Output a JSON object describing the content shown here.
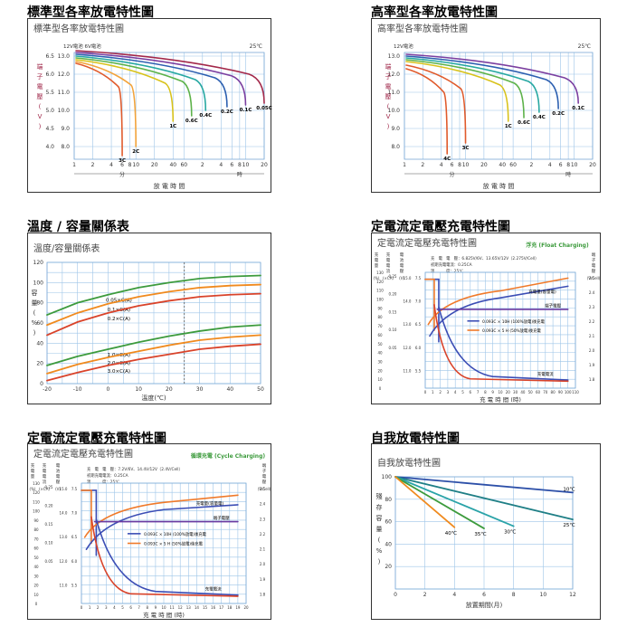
{
  "sections": [
    {
      "title": "標準型各率放電特性圖",
      "box_title": "標準型各率放電特性圖"
    },
    {
      "title": "高率型各率放電特性圖",
      "box_title": "高率型各率放電特性圖"
    },
    {
      "title": "溫度 / 容量關係表",
      "box_title": "溫度/容量關係表"
    },
    {
      "title": "定電流定電壓充電特性圖",
      "box_title": "定電流定電壓充電特性圖"
    },
    {
      "title": "定電流定電壓充電特性圖",
      "box_title": "定電流定電壓充電特性圖"
    },
    {
      "title": "自我放電特性圖",
      "box_title": "自我放電特性圖"
    }
  ],
  "chart_data": [
    {
      "type": "line",
      "header_left": "12V電池  6V電池",
      "header_right": "25℃",
      "ylabel": "端子電壓(V)",
      "y12_ticks": [
        "13.0",
        "12.0",
        "11.0",
        "10.0",
        "9.0",
        "8.0"
      ],
      "y6_ticks": [
        "6.5",
        "6.0",
        "5.5",
        "5.0",
        "4.5",
        "4.0"
      ],
      "x_ticks": [
        "1",
        "2",
        "4",
        "6",
        "8",
        "10",
        "20",
        "40",
        "60",
        "2",
        "4",
        "6",
        "8",
        "10",
        "20"
      ],
      "x_units": {
        "min": "分",
        "hour": "時"
      },
      "xlabel": "放 電 時 間",
      "series": [
        {
          "name": "3C",
          "end_min": 6,
          "v0": 12.6,
          "vend": 7.5
        },
        {
          "name": "2C",
          "end_min": 10,
          "v0": 12.7,
          "vend": 8.0
        },
        {
          "name": "1C",
          "end_min": 40,
          "v0": 12.8,
          "vend": 9.4
        },
        {
          "name": "0.6C",
          "end_min": 80,
          "v0": 12.9,
          "vend": 9.7
        },
        {
          "name": "0.4C",
          "end_min": 135,
          "v0": 13.0,
          "vend": 10.0
        },
        {
          "name": "0.2C",
          "end_min": 300,
          "v0": 13.1,
          "vend": 10.2
        },
        {
          "name": "0.1C",
          "end_min": 600,
          "v0": 13.2,
          "vend": 10.3
        },
        {
          "name": "0.05C",
          "end_min": 1200,
          "v0": 13.3,
          "vend": 10.4
        }
      ]
    },
    {
      "type": "line",
      "header_left": "12V電池",
      "header_right": "25℃",
      "ylabel": "端子電壓(V)",
      "y12_ticks": [
        "13.0",
        "12.0",
        "11.0",
        "10.0",
        "9.0",
        "8.0"
      ],
      "x_ticks": [
        "1",
        "2",
        "4",
        "6",
        "8",
        "10",
        "20",
        "40",
        "60",
        "2",
        "4",
        "6",
        "8",
        "10",
        "20"
      ],
      "x_units": {
        "min": "分",
        "hour": "時"
      },
      "xlabel": "放 電 時 間",
      "series": [
        {
          "name": "4C",
          "end_min": 5,
          "v0": 12.3,
          "vend": 7.6
        },
        {
          "name": "3C",
          "end_min": 10,
          "v0": 12.5,
          "vend": 8.2
        },
        {
          "name": "1C",
          "end_min": 50,
          "v0": 12.7,
          "vend": 9.4
        },
        {
          "name": "0.6C",
          "end_min": 90,
          "v0": 12.8,
          "vend": 9.6
        },
        {
          "name": "0.4C",
          "end_min": 160,
          "v0": 12.9,
          "vend": 9.9
        },
        {
          "name": "0.2C",
          "end_min": 330,
          "v0": 13.0,
          "vend": 10.1
        },
        {
          "name": "0.1C",
          "end_min": 700,
          "v0": 13.1,
          "vend": 10.4
        }
      ]
    },
    {
      "type": "line",
      "ylabel": "容量(%)",
      "xlabel": "溫度(℃)",
      "x": [
        -20,
        -10,
        0,
        10,
        20,
        30,
        40,
        50
      ],
      "x_ticks": [
        "-20",
        "-10",
        "0",
        "10",
        "20",
        "30",
        "40",
        "50"
      ],
      "y_ticks": [
        "0",
        "20",
        "40",
        "60",
        "80",
        "100",
        "120"
      ],
      "ylim": [
        0,
        120
      ],
      "marker_x": 25,
      "series": [
        {
          "name": "0.05×C(A)",
          "values": [
            68,
            80,
            88,
            95,
            100,
            104,
            106,
            107
          ]
        },
        {
          "name": "0.1×C(A)",
          "values": [
            58,
            70,
            79,
            86,
            91,
            95,
            97,
            98
          ]
        },
        {
          "name": "0.2×C(A)",
          "values": [
            48,
            61,
            70,
            77,
            82,
            86,
            88,
            89
          ]
        },
        {
          "name": "1.0×C(A)",
          "values": [
            18,
            27,
            34,
            41,
            47,
            52,
            56,
            58
          ]
        },
        {
          "name": "2.0×C(A)",
          "values": [
            10,
            19,
            26,
            32,
            38,
            43,
            46,
            48
          ]
        },
        {
          "name": "3.0×C(A)",
          "values": [
            3,
            11,
            18,
            24,
            29,
            34,
            37,
            39
          ]
        }
      ]
    },
    {
      "type": "line",
      "mode_label": "浮充 (Float Charging)",
      "col_headers": [
        "充電量",
        "充電電流",
        "電池電壓",
        "端子電壓"
      ],
      "col_units": [
        "(%)",
        "(×CA)",
        "(V)",
        "(V/Cell)"
      ],
      "info": [
        "充　電　電　壓：6.825V/6V、13.65V/12V（2.275V/Cell）",
        "初期充電電流：0.25CA",
        "溫　　　度：25℃"
      ],
      "legend": [
        "0.093C × 10H (100%放電)後充電",
        "0.093C × 5 H (50%放電)後充電"
      ],
      "labels": {
        "charge_qty": "充電量(容量電)",
        "term_v": "端子電壓",
        "current": "充電電流"
      },
      "xlabel": "充 電 時 間 (時)",
      "x_ticks": [
        "0",
        "1",
        "2",
        "3",
        "4",
        "5",
        "6",
        "7",
        "8",
        "9",
        "10",
        "20",
        "30",
        "40",
        "50",
        "60",
        "70",
        "80",
        "90",
        "100",
        "110"
      ],
      "charge_ticks": [
        "130",
        "120",
        "110",
        "100",
        "90",
        "80",
        "70",
        "60",
        "50",
        "40",
        "30",
        "20",
        "10",
        "0"
      ],
      "current_ticks": [
        "0.25",
        "0.20",
        "0.15",
        "0.10",
        "0.05"
      ],
      "batt_ticks": [
        "15.0",
        "7.5",
        "14.0",
        "7.0",
        "13.0",
        "6.5",
        "12.0",
        "6.0",
        "11.0",
        "5.5"
      ],
      "cell_ticks": [
        "2.5",
        "2.4",
        "2.3",
        "2.2",
        "2.1",
        "2.0",
        "1.9",
        "1.8"
      ]
    },
    {
      "type": "line",
      "mode_label": "循環充電 (Cycle Charging)",
      "col_headers": [
        "充電量",
        "充電電流",
        "電池電壓",
        "端子電壓"
      ],
      "col_units": [
        "(%)",
        "(×CA)",
        "(V)",
        "(V/Cell)"
      ],
      "info": [
        "充　電　電　壓：7.2V/6V、14.4V/12V（2.4V/Cell）",
        "初期充電電流：0.25CA",
        "溫　　　度：25℃"
      ],
      "legend": [
        "0.093C × 10H (100%放電)後充電",
        "0.093C × 5 H (50%放電)後充電"
      ],
      "labels": {
        "charge_qty": "充電量(容量電)",
        "term_v": "端子電壓",
        "current": "充電電流"
      },
      "xlabel": "充 電 時 間 (時)",
      "x_ticks": [
        "0",
        "1",
        "2",
        "3",
        "4",
        "5",
        "6",
        "7",
        "8",
        "9",
        "10",
        "11",
        "12",
        "13",
        "14",
        "15",
        "16",
        "17",
        "18",
        "19",
        "20"
      ],
      "charge_ticks": [
        "130",
        "120",
        "110",
        "100",
        "90",
        "80",
        "70",
        "60",
        "50",
        "40",
        "30",
        "20",
        "10",
        "0"
      ],
      "current_ticks": [
        "0.25",
        "0.20",
        "0.15",
        "0.10",
        "0.05"
      ],
      "batt_ticks": [
        "15.0",
        "7.5",
        "14.0",
        "7.0",
        "13.0",
        "6.5",
        "12.0",
        "6.0",
        "11.0",
        "5.5"
      ],
      "cell_ticks": [
        "2.5",
        "2.4",
        "2.3",
        "2.2",
        "2.1",
        "2.0",
        "1.9",
        "1.8"
      ]
    },
    {
      "type": "line",
      "ylabel": "殘存容量(%)",
      "xlabel": "放置期間(月)",
      "x_ticks": [
        "0",
        "2",
        "4",
        "6",
        "8",
        "10",
        "12"
      ],
      "y_ticks": [
        "100",
        "80",
        "60",
        "40",
        "20"
      ],
      "xlim": [
        0,
        12
      ],
      "ylim": [
        0,
        100
      ],
      "series": [
        {
          "name": "10℃",
          "x": [
            0,
            12
          ],
          "y": [
            100,
            86
          ]
        },
        {
          "name": "25℃",
          "x": [
            0,
            12
          ],
          "y": [
            100,
            62
          ]
        },
        {
          "name": "30℃",
          "x": [
            0,
            8
          ],
          "y": [
            100,
            56
          ]
        },
        {
          "name": "35℃",
          "x": [
            0,
            6
          ],
          "y": [
            100,
            54
          ]
        },
        {
          "name": "40℃",
          "x": [
            0,
            4
          ],
          "y": [
            100,
            55
          ]
        }
      ]
    }
  ]
}
